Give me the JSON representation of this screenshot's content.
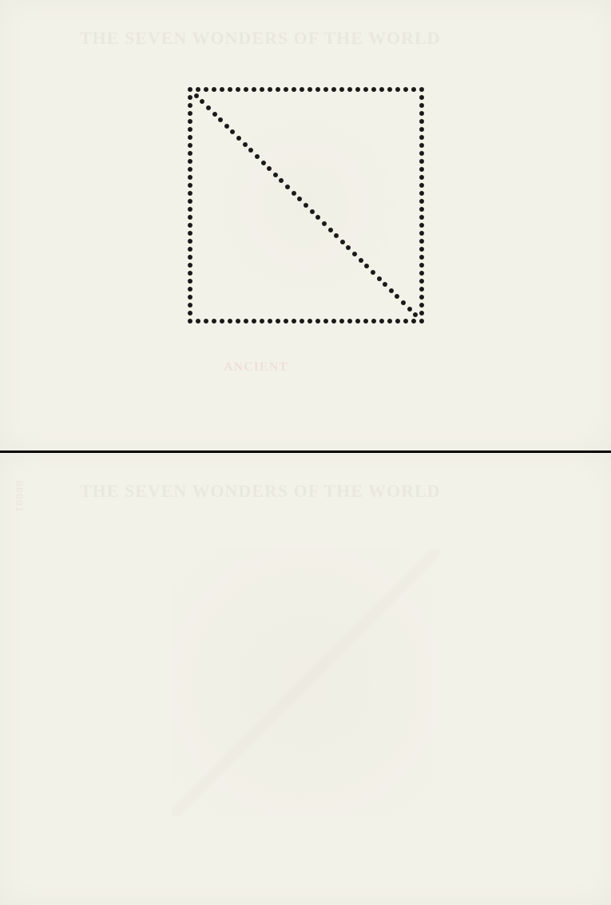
{
  "sheets": {
    "top": {
      "background_color": "#f3f2e9",
      "watermark_title": "THE SEVEN WONDERS OF THE WORLD",
      "watermark_subtitle": "ANCIENT",
      "perforation": {
        "dot_color": "#1a1a1a",
        "dot_size": 6,
        "dots_per_side": 30,
        "square_size": 290,
        "has_diagonal": true
      }
    },
    "bottom": {
      "background_color": "#f3f2e9",
      "watermark_title": "THE SEVEN WONDERS OF THE WORLD",
      "watermark_number": "00001",
      "faint_square": true
    }
  },
  "layout": {
    "total_width": 765,
    "total_height": 1133,
    "gap": 3,
    "gap_color": "#000000"
  }
}
